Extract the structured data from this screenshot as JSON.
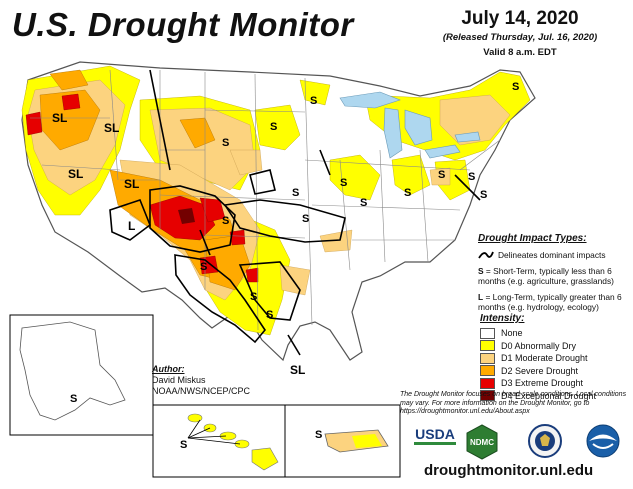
{
  "title": "U.S. Drought Monitor",
  "date": {
    "main": "July 14, 2020",
    "released": "(Released Thursday, Jul. 16, 2020)",
    "valid": "Valid 8 a.m. EDT"
  },
  "impact": {
    "title": "Drought Impact Types:",
    "delineates": "Delineates dominant impacts",
    "short_key": "S",
    "short_text": " = Short-Term, typically less than 6 months (e.g. agriculture, grasslands)",
    "long_key": "L",
    "long_text": " = Long-Term, typically greater than 6 months (e.g. hydrology, ecology)"
  },
  "intensity": {
    "title": "Intensity:",
    "levels": [
      {
        "label": "None",
        "color": "#ffffff"
      },
      {
        "label": "D0 Abnormally Dry",
        "color": "#ffff00"
      },
      {
        "label": "D1 Moderate Drought",
        "color": "#fcd37f"
      },
      {
        "label": "D2 Severe Drought",
        "color": "#ffaa00"
      },
      {
        "label": "D3 Extreme Drought",
        "color": "#e60000"
      },
      {
        "label": "D4 Exceptional Drought",
        "color": "#730000"
      }
    ]
  },
  "author": {
    "title": "Author:",
    "name": "David Miskus",
    "org": "NOAA/NWS/NCEP/CPC"
  },
  "footnote": "The Drought Monitor focuses on broad-scale conditions. Local conditions may vary. For more information on the Drought Monitor, go to https://droughtmonitor.unl.edu/About.aspx",
  "url": "droughtmonitor.unl.edu",
  "logos": {
    "usda": "USDA",
    "ndmc": "NDMC"
  },
  "map_labels": {
    "sl": "SL",
    "s": "S",
    "l": "L"
  },
  "colors": {
    "water": "#aed7ef",
    "state_border": "#8a8a8a",
    "impact_line": "#000000"
  }
}
